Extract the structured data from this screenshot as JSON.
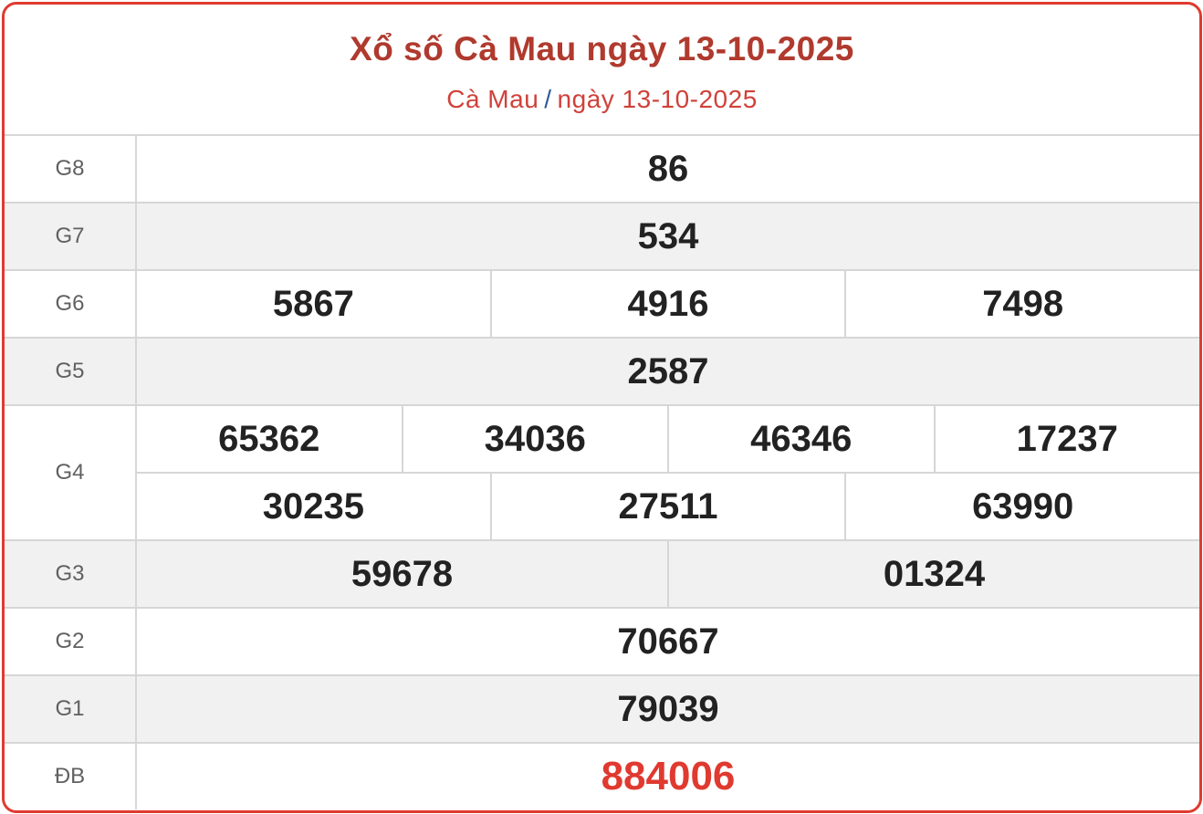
{
  "header": {
    "title": "Xổ số Cà Mau ngày 13-10-2025",
    "breadcrumb": {
      "province": "Cà Mau",
      "separator": "/",
      "date": "ngày 13-10-2025"
    }
  },
  "colors": {
    "accent": "#e03a30",
    "title": "#b03a2e",
    "special": "#e03a30"
  },
  "prizes": [
    {
      "label": "G8",
      "rows": [
        [
          "86"
        ]
      ]
    },
    {
      "label": "G7",
      "rows": [
        [
          "534"
        ]
      ]
    },
    {
      "label": "G6",
      "rows": [
        [
          "5867",
          "4916",
          "7498"
        ]
      ]
    },
    {
      "label": "G5",
      "rows": [
        [
          "2587"
        ]
      ]
    },
    {
      "label": "G4",
      "rows": [
        [
          "65362",
          "34036",
          "46346",
          "17237"
        ],
        [
          "30235",
          "27511",
          "63990"
        ]
      ]
    },
    {
      "label": "G3",
      "rows": [
        [
          "59678",
          "01324"
        ]
      ]
    },
    {
      "label": "G2",
      "rows": [
        [
          "70667"
        ]
      ]
    },
    {
      "label": "G1",
      "rows": [
        [
          "79039"
        ]
      ]
    },
    {
      "label": "ĐB",
      "rows": [
        [
          "884006"
        ]
      ]
    }
  ]
}
